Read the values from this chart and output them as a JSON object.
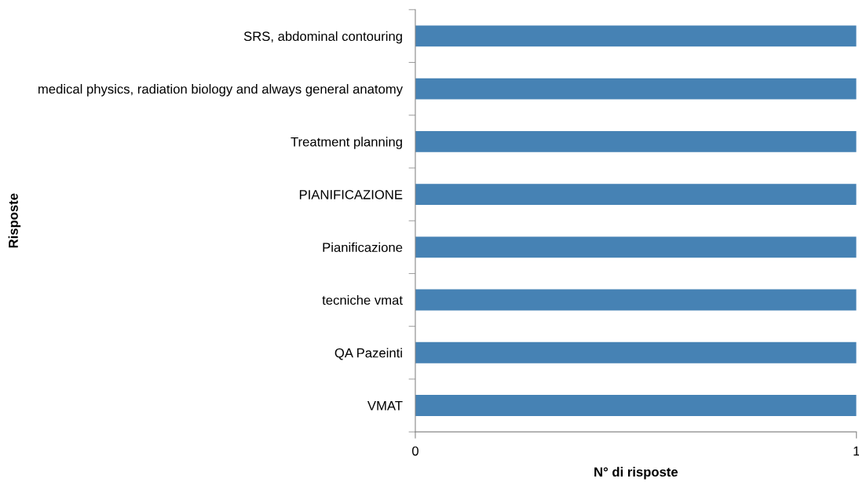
{
  "chart_data": {
    "type": "bar",
    "orientation": "horizontal",
    "categories": [
      "SRS, abdominal contouring",
      "medical physics, radiation biology and always general anatomy",
      "Treatment planning",
      "PIANIFICAZIONE",
      "Pianificazione",
      "tecniche vmat",
      "QA Pazeinti",
      "VMAT"
    ],
    "values": [
      1,
      1,
      1,
      1,
      1,
      1,
      1,
      1
    ],
    "color": "#4682b4",
    "xlabel": "N° di risposte",
    "ylabel": "Risposte",
    "xlim": [
      0,
      1
    ],
    "xticks": [
      0,
      1
    ],
    "grid": false
  }
}
